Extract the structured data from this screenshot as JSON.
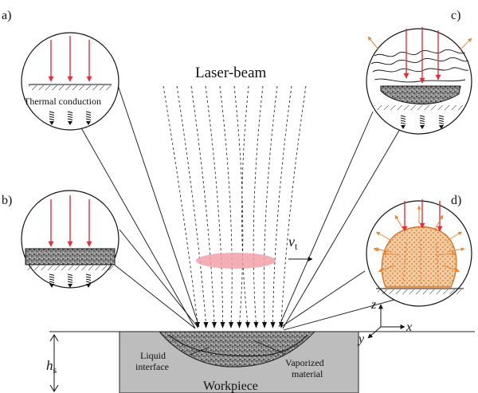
{
  "panels": {
    "a": {
      "letter": "a)",
      "caption": "Thermal conduction"
    },
    "b": {
      "letter": "b)"
    },
    "c": {
      "letter": "c)"
    },
    "d": {
      "letter": "d)"
    }
  },
  "beam": {
    "title": "Laser-beam"
  },
  "motion": {
    "v_symbol": "v",
    "v_sub": "t"
  },
  "workpiece": {
    "title": "Workpiece",
    "liquid_interface": [
      "Liquid",
      "interface"
    ],
    "vaporized_material": [
      "Vaporized",
      "material"
    ],
    "depth_symbol": "h",
    "depth_sub": "s"
  },
  "axes": {
    "x": "x",
    "y": "y",
    "z": "z"
  },
  "colors": {
    "laser_arrow": "#e0303a",
    "focus_spot": "#f2a0a8",
    "droplet_fill": "#f3c89a",
    "droplet_edge": "#d8762b",
    "spray": "#e8883a",
    "workpiece_fill": "#bdbdbd"
  }
}
